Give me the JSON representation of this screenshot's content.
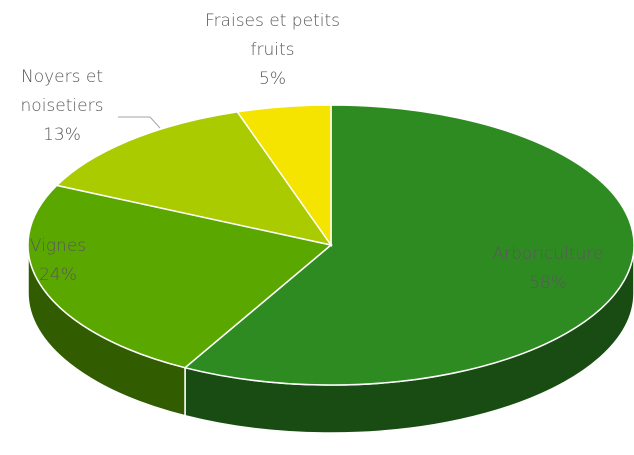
{
  "chart_data": {
    "type": "pie",
    "categories": [
      "Arboriculture",
      "Vignes",
      "Noyers et noisetiers",
      "Fraises et petits fruits"
    ],
    "values": [
      58,
      24,
      13,
      5
    ],
    "value_labels": [
      "58%",
      "24%",
      "13%",
      "5%"
    ],
    "colors": [
      "#2e8b22",
      "#5aa700",
      "#aacb00",
      "#f5e400"
    ]
  }
}
